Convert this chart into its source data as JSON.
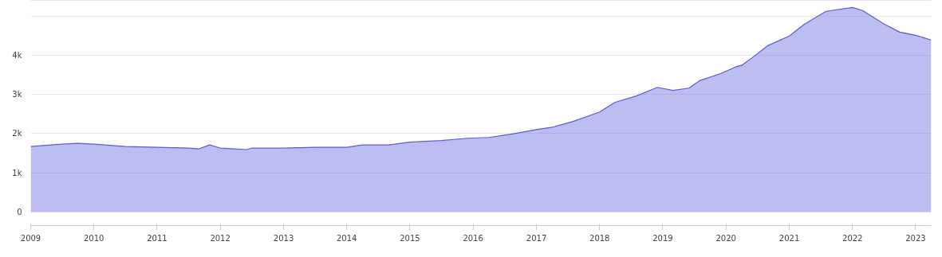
{
  "chart_data": {
    "type": "area",
    "x": [
      "2009-01",
      "2009-07",
      "2009-10",
      "2010-01",
      "2010-07",
      "2011-01",
      "2011-07",
      "2011-09",
      "2011-11",
      "2012-01",
      "2012-06",
      "2012-07",
      "2013-01",
      "2013-07",
      "2014-01",
      "2014-04",
      "2014-09",
      "2015-01",
      "2015-07",
      "2015-12",
      "2016-04",
      "2016-08",
      "2017-01",
      "2017-04",
      "2017-08",
      "2018-01",
      "2018-04",
      "2018-08",
      "2018-12",
      "2019-03",
      "2019-06",
      "2019-08",
      "2019-12",
      "2020-03",
      "2020-04",
      "2020-06",
      "2020-09",
      "2021-01",
      "2021-04",
      "2021-08",
      "2022-01",
      "2022-03",
      "2022-07",
      "2022-10",
      "2023-01",
      "2023-04"
    ],
    "series": [
      {
        "color": "#5b5bdb",
        "values": [
          1670,
          1730,
          1750,
          1730,
          1670,
          1650,
          1630,
          1610,
          1710,
          1630,
          1590,
          1630,
          1630,
          1650,
          1650,
          1710,
          1710,
          1780,
          1820,
          1880,
          1900,
          1980,
          2100,
          2160,
          2310,
          2550,
          2800,
          2960,
          3180,
          3100,
          3160,
          3350,
          3530,
          3710,
          3740,
          3940,
          4250,
          4490,
          4800,
          5120,
          5220,
          5140,
          4800,
          4590,
          4510,
          4390
        ]
      }
    ],
    "xlim": [
      "2009-01",
      "2023-04"
    ],
    "xticks": [
      "2009",
      "2010",
      "2011",
      "2012",
      "2013",
      "2014",
      "2015",
      "2016",
      "2017",
      "2018",
      "2019",
      "2020",
      "2021",
      "2022",
      "2023"
    ],
    "ylim": [
      -350,
      5400
    ],
    "yticks": [
      0,
      {
        "value": 1000,
        "label": "1k"
      },
      {
        "value": 2000,
        "label": "2k"
      },
      {
        "value": 3000,
        "label": "3k"
      },
      {
        "value": 4000,
        "label": "4k"
      },
      {
        "value": 5000,
        "label": null
      }
    ],
    "grid": "y"
  }
}
